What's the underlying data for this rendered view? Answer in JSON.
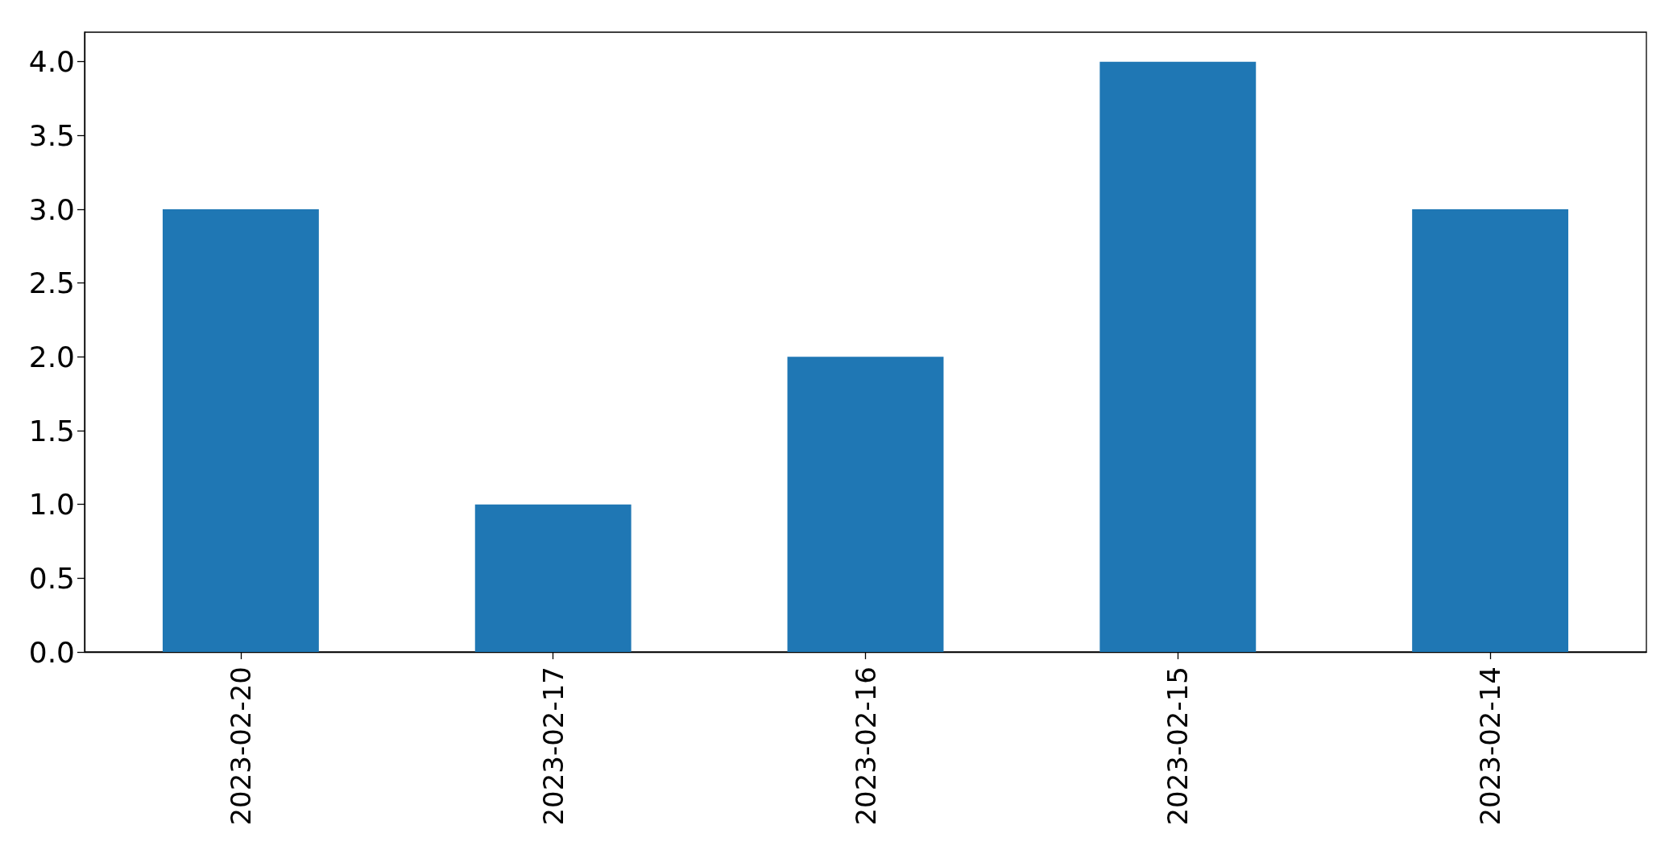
{
  "chart_data": {
    "type": "bar",
    "categories": [
      "2023-02-20",
      "2023-02-17",
      "2023-02-16",
      "2023-02-15",
      "2023-02-14"
    ],
    "values": [
      3,
      1,
      2,
      4,
      3
    ],
    "color": "#1f77b4",
    "ylim": [
      0,
      4.2
    ],
    "yticks": [
      {
        "value": 0,
        "label": "0.0"
      },
      {
        "value": 0.5,
        "label": "0.5"
      },
      {
        "value": 1,
        "label": "1.0"
      },
      {
        "value": 1.5,
        "label": "1.5"
      },
      {
        "value": 2,
        "label": "2.0"
      },
      {
        "value": 2.5,
        "label": "2.5"
      },
      {
        "value": 3,
        "label": "3.0"
      },
      {
        "value": 3.5,
        "label": "3.5"
      },
      {
        "value": 4,
        "label": "4.0"
      }
    ]
  }
}
